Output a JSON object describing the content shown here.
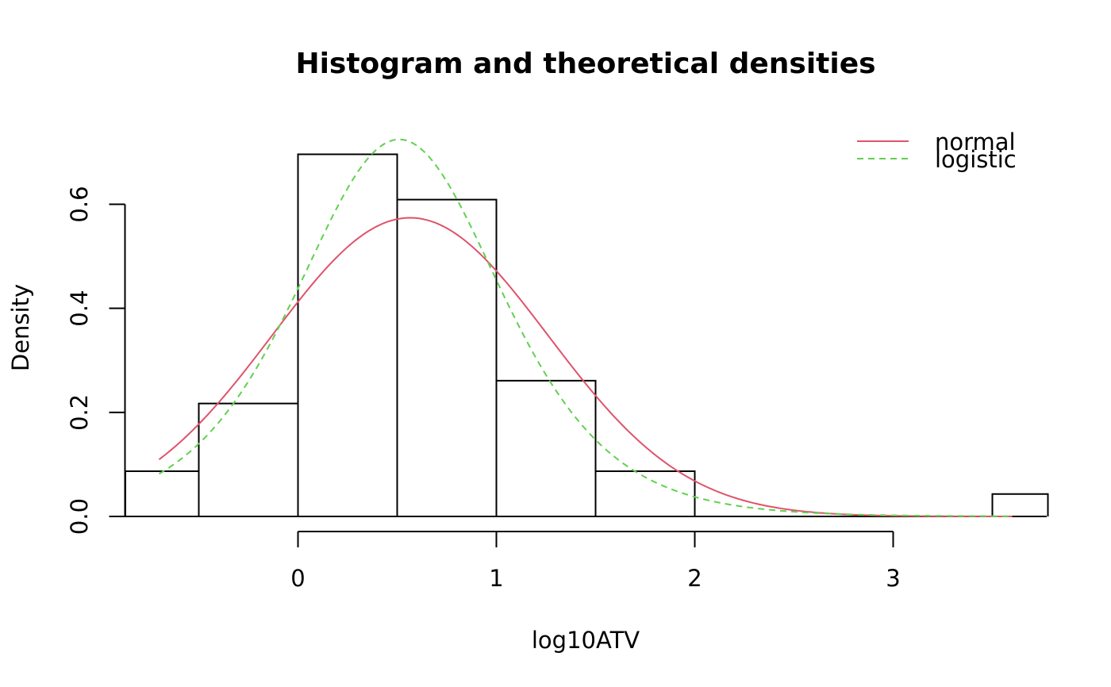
{
  "chart_data": {
    "type": "bar",
    "title": "Histogram and theoretical densities",
    "xlabel": "log10ATV",
    "ylabel": "Density",
    "x_ticks": [
      0,
      1,
      2,
      3
    ],
    "y_ticks": [
      0.0,
      0.2,
      0.4,
      0.6
    ],
    "x_tick_labels": [
      "0",
      "1",
      "2",
      "3"
    ],
    "y_tick_labels": [
      "0.0",
      "0.2",
      "0.4",
      "0.6"
    ],
    "xlim": [
      -0.87,
      3.78
    ],
    "ylim": [
      0,
      0.745
    ],
    "grid": false,
    "legend_position": "top-right",
    "histogram": {
      "bins": [
        {
          "start": -0.87,
          "end": -0.5,
          "density": 0.087
        },
        {
          "start": -0.5,
          "end": 0.0,
          "density": 0.217
        },
        {
          "start": 0.0,
          "end": 0.5,
          "density": 0.696
        },
        {
          "start": 0.5,
          "end": 1.0,
          "density": 0.609
        },
        {
          "start": 1.0,
          "end": 1.5,
          "density": 0.261
        },
        {
          "start": 1.5,
          "end": 2.0,
          "density": 0.087
        },
        {
          "start": 2.0,
          "end": 2.5,
          "density": 0.0
        },
        {
          "start": 2.5,
          "end": 3.0,
          "density": 0.0
        },
        {
          "start": 3.0,
          "end": 3.5,
          "density": 0.0
        },
        {
          "start": 3.5,
          "end": 3.78,
          "density": 0.043
        }
      ]
    },
    "series": [
      {
        "name": "normal",
        "color": "#DF536B",
        "dash": "solid",
        "distribution": "normal",
        "params": {
          "mean": 0.565,
          "sd": 0.695
        },
        "x_range": [
          -0.7,
          3.6
        ]
      },
      {
        "name": "logistic",
        "color": "#61D04F",
        "dash": "dashed",
        "distribution": "logistic",
        "params": {
          "location": 0.51,
          "scale": 0.345
        },
        "x_range": [
          -0.7,
          3.6
        ]
      }
    ]
  }
}
